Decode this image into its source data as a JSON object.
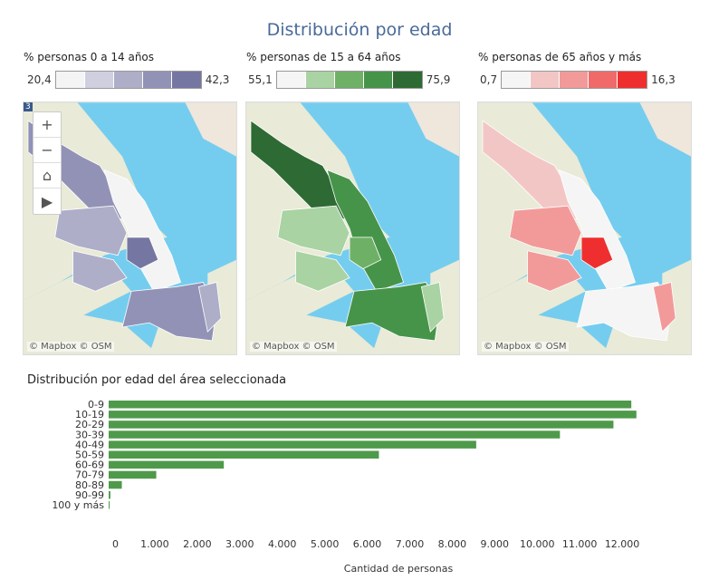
{
  "title": "Distribución por edad",
  "legends": [
    {
      "title": "% personas 0 a 14 años",
      "min": "20,4",
      "max": "42,3",
      "colors": [
        "#f4f4f4",
        "#cfcfe0",
        "#aeaec9",
        "#9292b6",
        "#7676a3"
      ]
    },
    {
      "title": "% personas de 15 a 64 años",
      "min": "55,1",
      "max": "75,9",
      "colors": [
        "#f5f5f5",
        "#a9d3a2",
        "#6fb067",
        "#46944a",
        "#2e6a33"
      ]
    },
    {
      "title": "% personas de 65 años y más",
      "min": "0,7",
      "max": "16,3",
      "colors": [
        "#f5f5f5",
        "#f3c6c6",
        "#f29a9a",
        "#f06a6a",
        "#ef2f2f"
      ]
    }
  ],
  "maps": {
    "attribution": "© Mapbox © OSM",
    "badge": "3",
    "controls": {
      "zoom_in": "+",
      "zoom_out": "−",
      "home": "⌂",
      "expand": "▶"
    },
    "colors": {
      "water": "#74cdef",
      "land": "#e9ead7",
      "land_warm": "#efe6dc"
    }
  },
  "bar_chart_title": "Distribución por edad del área seleccionada",
  "chart_data": {
    "type": "bar",
    "orientation": "horizontal",
    "categories": [
      "0-9",
      "10-19",
      "20-29",
      "30-39",
      "40-49",
      "50-59",
      "60-69",
      "70-79",
      "80-89",
      "90-99",
      "100 y más"
    ],
    "values": [
      12300,
      12420,
      11880,
      10620,
      8650,
      6360,
      2710,
      1120,
      310,
      40,
      5
    ],
    "xlabel": "Cantidad de personas",
    "xticks": [
      "0",
      "1.000",
      "2.000",
      "3.000",
      "4.000",
      "5.000",
      "6.000",
      "7.000",
      "8.000",
      "9.000",
      "10.000",
      "11.000",
      "12.000"
    ],
    "xlim": [
      0,
      13000
    ],
    "color": "#4e9a4a"
  }
}
